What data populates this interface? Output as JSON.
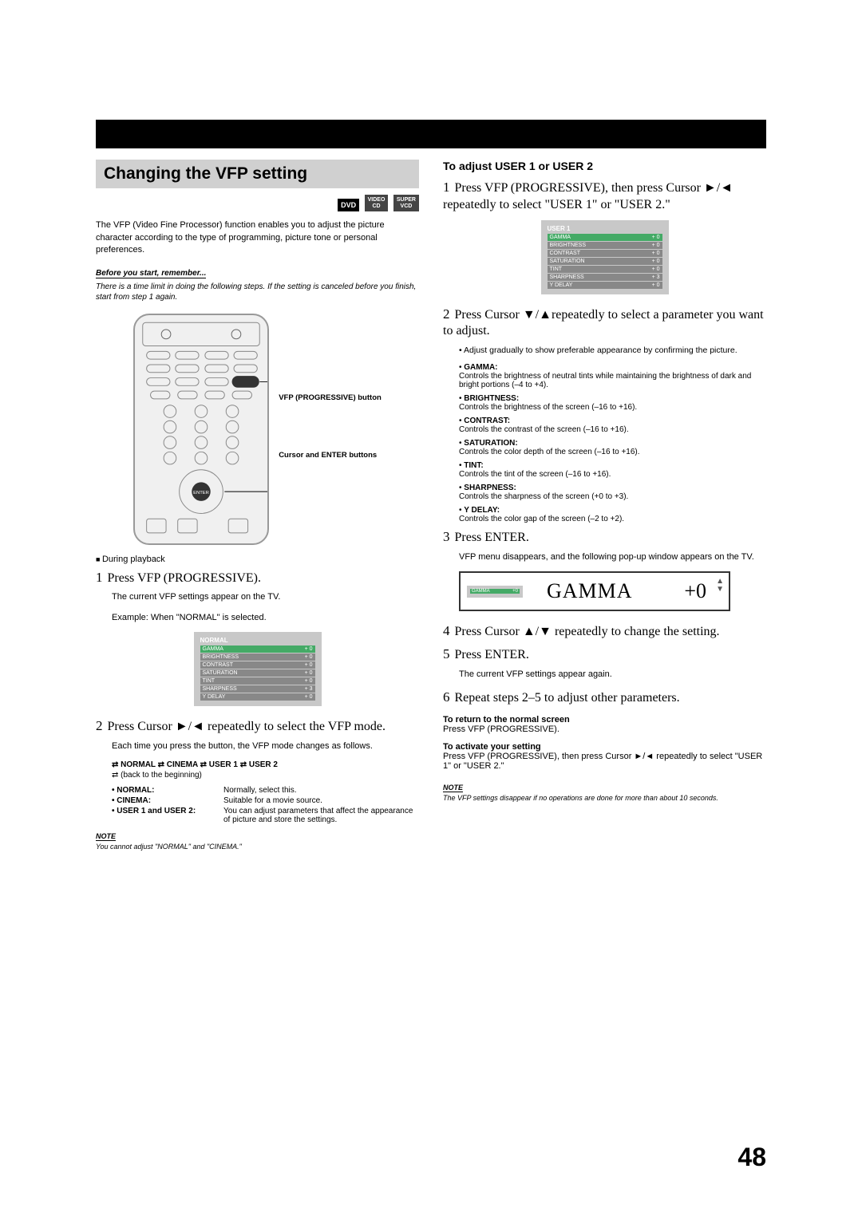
{
  "section_title": "Changing the VFP setting",
  "badges": {
    "dvd": "DVD",
    "video_cd": "VIDEO CD",
    "super_vcd": "SUPER VCD",
    "cd": "CD",
    "vcd": "VCD"
  },
  "intro": "The VFP (Video Fine Processor) function enables you to adjust the picture character according to the type of programming, picture tone or personal preferences.",
  "remember_hdr": "Before you start, remember...",
  "remember_body": "There is a time limit in doing the following steps. If the setting is canceled before you finish, start from step 1 again.",
  "remote_label1": "VFP (PROGRESSIVE) button",
  "remote_label2": "Cursor and ENTER buttons",
  "playback": "During playback",
  "left_steps": {
    "s1": "Press VFP (PROGRESSIVE).",
    "s1_body1": "The current VFP settings appear on the TV.",
    "s1_body2": "Example: When \"NORMAL\" is selected.",
    "s2": "Press Cursor ►/◄ repeatedly to select the VFP mode.",
    "s2_body": "Each time you press the button, the VFP mode changes as follows."
  },
  "vfp_preset_title": "NORMAL",
  "vfp_rows": [
    {
      "k": "GAMMA",
      "v": "+ 0"
    },
    {
      "k": "BRIGHTNESS",
      "v": "+ 0"
    },
    {
      "k": "CONTRAST",
      "v": "+ 0"
    },
    {
      "k": "SATURATION",
      "v": "+ 0"
    },
    {
      "k": "TINT",
      "v": "+ 0"
    },
    {
      "k": "SHARPNESS",
      "v": "+ 3"
    },
    {
      "k": "Y DELAY",
      "v": "+ 0"
    }
  ],
  "mode_seq": "⇄ NORMAL ⇄ CINEMA ⇄ USER 1 ⇄ USER 2",
  "mode_back": "⇄ (back to the beginning)",
  "modes": [
    {
      "k": "• NORMAL:",
      "v": "Normally, select this."
    },
    {
      "k": "• CINEMA:",
      "v": "Suitable for a movie source."
    },
    {
      "k": "• USER 1 and USER 2:",
      "v": "You can adjust parameters that affect the appearance of picture and store the settings."
    }
  ],
  "note1_hdr": "NOTE",
  "note1_body": "You cannot adjust \"NORMAL\" and \"CINEMA.\"",
  "right": {
    "sub_h": "To adjust USER 1 or USER 2",
    "s1": "Press VFP (PROGRESSIVE), then press Cursor ►/◄ repeatedly to select \"USER 1\" or \"USER 2.\"",
    "user_preset_title": "USER 1",
    "s2": "Press Cursor ▼/▲repeatedly to select a parameter you want to adjust.",
    "s2_bullet": "Adjust gradually to show preferable appearance by confirming the picture.",
    "params": [
      {
        "k": "GAMMA:",
        "v": "Controls the brightness of neutral tints while maintaining the brightness of dark and bright portions (–4 to +4)."
      },
      {
        "k": "BRIGHTNESS:",
        "v": "Controls the brightness of the screen (–16 to +16)."
      },
      {
        "k": "CONTRAST:",
        "v": "Controls the contrast of the screen (–16 to +16)."
      },
      {
        "k": "SATURATION:",
        "v": "Controls the color depth of the screen (–16 to +16)."
      },
      {
        "k": "TINT:",
        "v": "Controls the tint of the screen (–16 to +16)."
      },
      {
        "k": "SHARPNESS:",
        "v": "Controls the sharpness of the screen (+0 to +3)."
      },
      {
        "k": "Y DELAY:",
        "v": "Controls the color gap of the screen (–2 to +2)."
      }
    ],
    "s3": "Press ENTER.",
    "s3_body": "VFP menu disappears, and the following pop-up window appears on the TV.",
    "popup_label": "GAMMA",
    "popup_val": "+0",
    "s4": "Press Cursor ▲/▼ repeatedly to change the setting.",
    "s5": "Press ENTER.",
    "s5_body": "The current VFP settings appear again.",
    "s6": "Repeat steps 2–5 to adjust other parameters.",
    "return_h": "To return to the normal screen",
    "return_b": "Press VFP (PROGRESSIVE).",
    "activate_h": "To activate your setting",
    "activate_b": "Press VFP (PROGRESSIVE), then press Cursor ►/◄ repeatedly to select \"USER 1\" or \"USER 2.\"",
    "note_hdr": "NOTE",
    "note_body": "The VFP settings disappear if no operations are done for more than about 10 seconds."
  },
  "page_num": "48"
}
